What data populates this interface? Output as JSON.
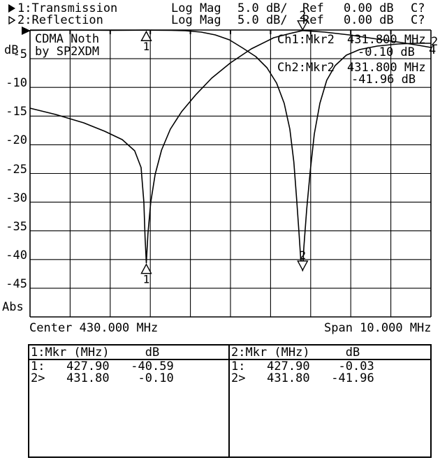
{
  "colors": {
    "background": "#ffffff",
    "foreground": "#000000"
  },
  "header": {
    "rows": [
      {
        "arrow": "filled-right-arrow",
        "label": "1:Transmission",
        "format": "Log Mag",
        "scale": "5.0 dB/",
        "ref_label": "Ref",
        "ref_value": "0.00 dB",
        "cal_status": "C?"
      },
      {
        "arrow": "hollow-right-arrow",
        "label": "2:Reflection",
        "format": "Log Mag",
        "scale": "5.0 dB/",
        "ref_label": "Ref",
        "ref_value": "0.00 dB",
        "cal_status": "C?"
      }
    ]
  },
  "annotation_box": {
    "line1": "CDMA Noth",
    "line2": "by SP2XDM"
  },
  "readouts": [
    {
      "label": "Ch1:Mkr2",
      "freq": "431.800 MHz",
      "value": "-0.10 dB"
    },
    {
      "label": "Ch2:Mkr2",
      "freq": "431.800 MHz",
      "value": "-41.96 dB"
    }
  ],
  "y_axis": {
    "unit": "dB",
    "bottom_label": "Abs",
    "ticks": [
      "-5",
      "-10",
      "-15",
      "-20",
      "-25",
      "-30",
      "-35",
      "-40",
      "-45"
    ]
  },
  "x_axis": {
    "center": "Center 430.000 MHz",
    "span": "Span 10.000 MHz"
  },
  "trace_end_labels": [
    {
      "text": "2"
    },
    {
      "text": "4"
    }
  ],
  "marker_tables": [
    {
      "header": "1:Mkr (MHz)     dB",
      "rows": [
        "1:   427.90   -40.59",
        "2>   431.80    -0.10"
      ]
    },
    {
      "header": "2:Mkr (MHz)     dB",
      "rows": [
        "1:   427.90    -0.03",
        "2>   431.80   -41.96"
      ]
    }
  ],
  "chart_data": {
    "type": "line",
    "title": "CDMA Noth by SP2XDM",
    "xlabel": "Frequency (MHz), Center 430.000 MHz, Span 10.000 MHz",
    "ylabel": "dB (Log Mag, 5.0 dB/div, Ref 0.00 dB)",
    "x_range_mhz": [
      425.0,
      435.0
    ],
    "y_range_db": [
      -50,
      0
    ],
    "db_per_div": 5.0,
    "mhz_per_div": 1.0,
    "grid": true,
    "series": [
      {
        "name": "ch1-transmission",
        "points": [
          [
            425.0,
            -13.63
          ],
          [
            425.64,
            -14.72
          ],
          [
            426.34,
            -16.18
          ],
          [
            426.86,
            -17.64
          ],
          [
            427.3,
            -19.1
          ],
          [
            427.61,
            -21.05
          ],
          [
            427.77,
            -23.97
          ],
          [
            427.84,
            -30.05
          ],
          [
            427.87,
            -36.13
          ],
          [
            427.9,
            -40.59
          ],
          [
            427.94,
            -35.52
          ],
          [
            428.01,
            -30.05
          ],
          [
            428.12,
            -25.18
          ],
          [
            428.28,
            -20.92
          ],
          [
            428.5,
            -17.27
          ],
          [
            428.78,
            -14.23
          ],
          [
            429.13,
            -11.31
          ],
          [
            429.53,
            -8.39
          ],
          [
            430.0,
            -5.72
          ],
          [
            430.52,
            -3.28
          ],
          [
            431.08,
            -1.34
          ],
          [
            431.48,
            -0.61
          ],
          [
            431.8,
            -0.1
          ],
          [
            432.35,
            -0.36
          ],
          [
            432.96,
            -0.85
          ],
          [
            433.66,
            -1.58
          ],
          [
            434.27,
            -2.19
          ],
          [
            434.7,
            -2.68
          ],
          [
            435.0,
            -3.04
          ]
        ]
      },
      {
        "name": "ch2-reflection",
        "points": [
          [
            425.0,
            -0.06
          ],
          [
            425.99,
            0.0
          ],
          [
            427.04,
            -0.06
          ],
          [
            427.9,
            -0.03
          ],
          [
            428.52,
            -0.06
          ],
          [
            428.87,
            -0.12
          ],
          [
            429.27,
            -0.36
          ],
          [
            429.62,
            -0.85
          ],
          [
            429.97,
            -1.7
          ],
          [
            430.31,
            -3.16
          ],
          [
            430.63,
            -4.62
          ],
          [
            430.91,
            -6.57
          ],
          [
            431.15,
            -9.25
          ],
          [
            431.34,
            -12.77
          ],
          [
            431.48,
            -17.27
          ],
          [
            431.58,
            -22.99
          ],
          [
            431.65,
            -29.44
          ],
          [
            431.71,
            -35.52
          ],
          [
            431.75,
            -39.78
          ],
          [
            431.8,
            -41.96
          ],
          [
            431.83,
            -37.96
          ],
          [
            431.9,
            -31.27
          ],
          [
            431.99,
            -24.57
          ],
          [
            432.09,
            -18.13
          ],
          [
            432.23,
            -12.77
          ],
          [
            432.4,
            -8.76
          ],
          [
            432.61,
            -6.2
          ],
          [
            432.89,
            -4.38
          ],
          [
            433.22,
            -3.41
          ],
          [
            433.66,
            -2.8
          ],
          [
            434.18,
            -2.43
          ],
          [
            434.62,
            -2.31
          ],
          [
            435.0,
            -2.31
          ]
        ]
      }
    ],
    "markers": [
      {
        "channel": 1,
        "n": "1",
        "mhz": 427.9,
        "db": -40.59,
        "active": false
      },
      {
        "channel": 1,
        "n": "2",
        "mhz": 431.8,
        "db": -0.1,
        "active": true
      },
      {
        "channel": 2,
        "n": "1",
        "mhz": 427.9,
        "db": -0.03,
        "active": false
      },
      {
        "channel": 2,
        "n": "2",
        "mhz": 431.8,
        "db": -41.96,
        "active": true
      }
    ]
  }
}
